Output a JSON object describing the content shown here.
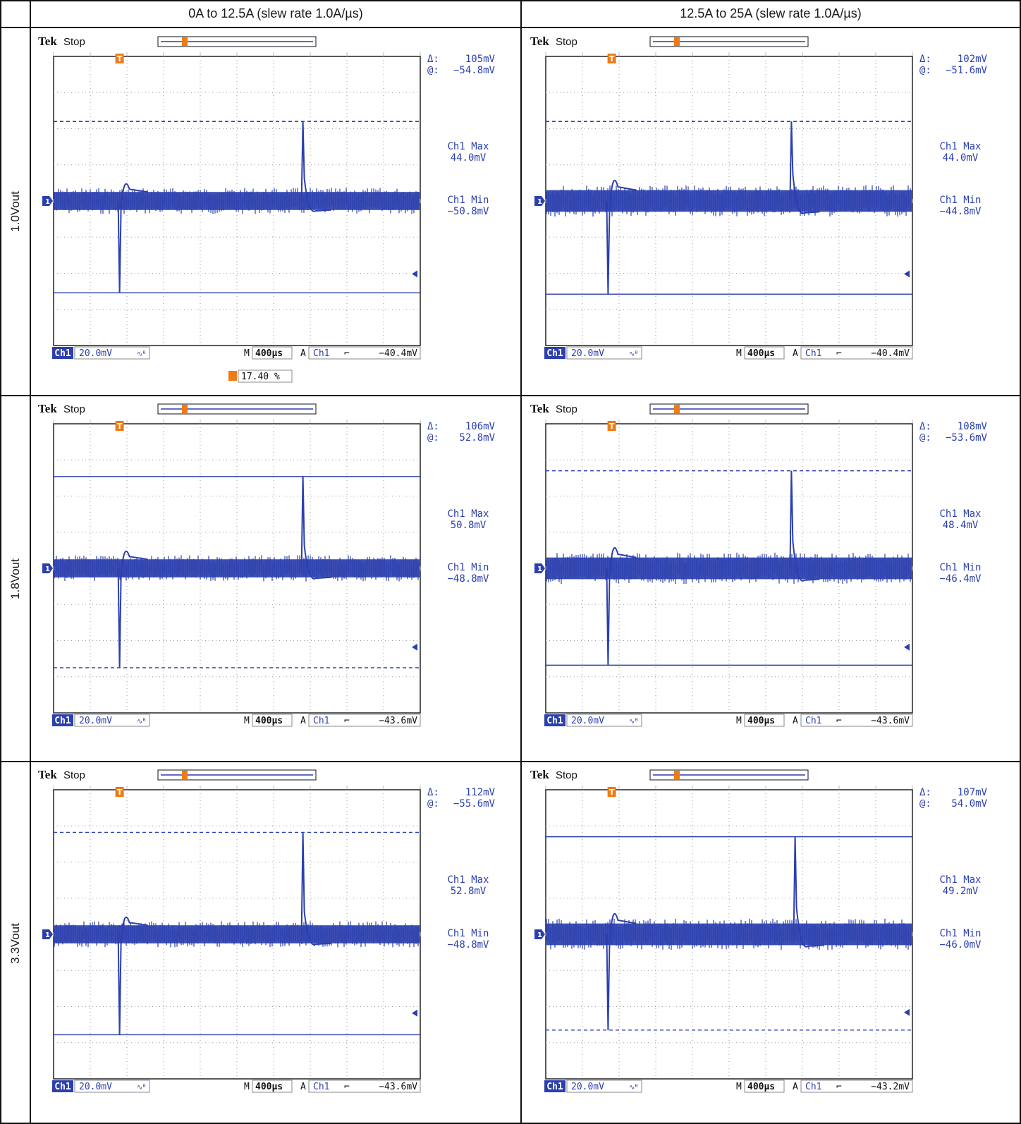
{
  "columns": [
    "0A to 12.5A (slew rate 1.0A/µs)",
    "12.5A to 25A (slew rate 1.0A/µs)"
  ],
  "rows": [
    "1.0Vout",
    "1.8Vout",
    "3.3Vout"
  ],
  "colors": {
    "trace": "#2b3fae",
    "text": "#2b3fae",
    "trigger": "#f07b14",
    "grid": "#9a9a9a"
  },
  "scope_brand": "Tek",
  "scope_status": "Stop",
  "chart_data": [
    {
      "type": "line",
      "row": "1.0Vout",
      "column": "0A to 12.5A (slew rate 1.0A/µs)",
      "delta": "105mV",
      "at": "−54.8mV",
      "ch1_max_label": "Ch1 Max",
      "ch1_max": "44.0mV",
      "ch1_min_label": "Ch1 Min",
      "ch1_min": "−50.8mV",
      "channel": "Ch1",
      "scale": "20.0mV",
      "timebase": "400µs",
      "trigger_channel": "Ch1",
      "trigger_level": "−40.4mV",
      "trigger_pos": "17.40 %",
      "cursor_upper": "dashed",
      "cursor_lower": "solid",
      "max_mv": 44.0,
      "min_mv": -50.8,
      "neg_at_div": 1.8,
      "pos_at_div": 6.8,
      "noise_mv": 5
    },
    {
      "type": "line",
      "row": "1.0Vout",
      "column": "12.5A to 25A (slew rate 1.0A/µs)",
      "delta": "102mV",
      "at": "−51.6mV",
      "ch1_max_label": "Ch1 Max",
      "ch1_max": "44.0mV",
      "ch1_min_label": "Ch1 Min",
      "ch1_min": "−44.8mV",
      "channel": "Ch1",
      "scale": "20.0mV",
      "timebase": "400µs",
      "trigger_channel": "Ch1",
      "trigger_level": "−40.4mV",
      "trigger_pos": "",
      "cursor_upper": "dashed",
      "cursor_lower": "solid",
      "max_mv": 44.0,
      "min_mv": -51.6,
      "neg_at_div": 1.7,
      "pos_at_div": 6.7,
      "noise_mv": 6
    },
    {
      "type": "line",
      "row": "1.8Vout",
      "column": "0A to 12.5A (slew rate 1.0A/µs)",
      "delta": "106mV",
      "at": "52.8mV",
      "ch1_max_label": "Ch1 Max",
      "ch1_max": "50.8mV",
      "ch1_min_label": "Ch1 Min",
      "ch1_min": "−48.8mV",
      "channel": "Ch1",
      "scale": "20.0mV",
      "timebase": "400µs",
      "trigger_channel": "Ch1",
      "trigger_level": "−43.6mV",
      "trigger_pos": "",
      "cursor_upper": "solid",
      "cursor_lower": "dashed",
      "max_mv": 50.8,
      "min_mv": -55.0,
      "neg_at_div": 1.8,
      "pos_at_div": 6.8,
      "noise_mv": 5
    },
    {
      "type": "line",
      "row": "1.8Vout",
      "column": "12.5A to 25A (slew rate 1.0A/µs)",
      "delta": "108mV",
      "at": "−53.6mV",
      "ch1_max_label": "Ch1 Max",
      "ch1_max": "48.4mV",
      "ch1_min_label": "Ch1 Min",
      "ch1_min": "−46.4mV",
      "channel": "Ch1",
      "scale": "20.0mV",
      "timebase": "400µs",
      "trigger_channel": "Ch1",
      "trigger_level": "−43.6mV",
      "trigger_pos": "",
      "cursor_upper": "dashed",
      "cursor_lower": "solid",
      "max_mv": 54.0,
      "min_mv": -53.6,
      "neg_at_div": 1.7,
      "pos_at_div": 6.7,
      "noise_mv": 6
    },
    {
      "type": "line",
      "row": "3.3Vout",
      "column": "0A to 12.5A (slew rate 1.0A/µs)",
      "delta": "112mV",
      "at": "−55.6mV",
      "ch1_max_label": "Ch1 Max",
      "ch1_max": "52.8mV",
      "ch1_min_label": "Ch1 Min",
      "ch1_min": "−48.8mV",
      "channel": "Ch1",
      "scale": "20.0mV",
      "timebase": "400µs",
      "trigger_channel": "Ch1",
      "trigger_level": "−43.6mV",
      "trigger_pos": "",
      "cursor_upper": "dashed",
      "cursor_lower": "solid",
      "max_mv": 56.4,
      "min_mv": -55.6,
      "neg_at_div": 1.8,
      "pos_at_div": 6.8,
      "noise_mv": 5
    },
    {
      "type": "line",
      "row": "3.3Vout",
      "column": "12.5A to 25A (slew rate 1.0A/µs)",
      "delta": "107mV",
      "at": "54.0mV",
      "ch1_max_label": "Ch1 Max",
      "ch1_max": "49.2mV",
      "ch1_min_label": "Ch1 Min",
      "ch1_min": "−46.0mV",
      "channel": "Ch1",
      "scale": "20.0mV",
      "timebase": "400µs",
      "trigger_channel": "Ch1",
      "trigger_level": "−43.2mV",
      "trigger_pos": "",
      "cursor_upper": "solid",
      "cursor_lower": "dashed",
      "max_mv": 54.0,
      "min_mv": -53.0,
      "neg_at_div": 1.7,
      "pos_at_div": 6.8,
      "noise_mv": 6
    }
  ]
}
